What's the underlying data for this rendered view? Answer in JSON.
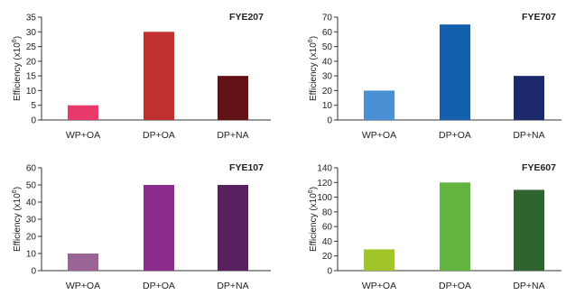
{
  "chart_data": [
    {
      "type": "bar",
      "title": "FYE207",
      "categories": [
        "WP+OA",
        "DP+OA",
        "DP+NA"
      ],
      "values": [
        5,
        30,
        15
      ],
      "ylabel_prefix": "Efficiency (x10",
      "ylabel_exp": "6",
      "ylabel_suffix": ")",
      "ylim": [
        0,
        35
      ],
      "yticks": [
        0,
        5,
        10,
        15,
        20,
        25,
        30,
        35
      ],
      "colors": [
        "#e8396a",
        "#c0302f",
        "#621115"
      ],
      "grid": false
    },
    {
      "type": "bar",
      "title": "FYE707",
      "categories": [
        "WP+OA",
        "DP+OA",
        "DP+NA"
      ],
      "values": [
        20,
        65,
        30
      ],
      "ylabel_prefix": "Efficiency (x10",
      "ylabel_exp": "6",
      "ylabel_suffix": ")",
      "ylim": [
        0,
        70
      ],
      "yticks": [
        0,
        10,
        20,
        30,
        40,
        50,
        60,
        70
      ],
      "colors": [
        "#4990d4",
        "#1560ae",
        "#1c2a6b"
      ],
      "grid": false
    },
    {
      "type": "bar",
      "title": "FYE107",
      "categories": [
        "WP+OA",
        "DP+OA",
        "DP+NA"
      ],
      "values": [
        10,
        50,
        50
      ],
      "ylabel_prefix": "Efficiency (x10",
      "ylabel_exp": "6",
      "ylabel_suffix": ")",
      "ylim": [
        0,
        60
      ],
      "yticks": [
        0,
        10,
        20,
        30,
        40,
        50,
        60
      ],
      "colors": [
        "#9a6496",
        "#8c2c8c",
        "#58205e"
      ],
      "grid": false
    },
    {
      "type": "bar",
      "title": "FYE607",
      "categories": [
        "WP+OA",
        "DP+OA",
        "DP+NA"
      ],
      "values": [
        29,
        120,
        110
      ],
      "ylabel_prefix": "Efficiency (x10",
      "ylabel_exp": "6",
      "ylabel_suffix": ")",
      "ylim": [
        0,
        140
      ],
      "yticks": [
        0,
        20,
        40,
        60,
        80,
        100,
        120,
        140
      ],
      "colors": [
        "#a3c52c",
        "#63b43e",
        "#2f6430"
      ],
      "grid": false
    }
  ]
}
